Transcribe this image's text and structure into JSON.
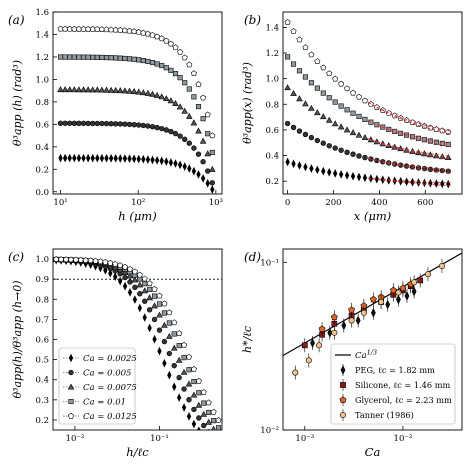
{
  "colors": {
    "ca0025": "#000000",
    "ca005": "#333333",
    "ca0075": "#555555",
    "ca01": "#8f9aa0",
    "ca0125": "#ffffff",
    "peg": "#111111",
    "silicone": "#8b1a1a",
    "glycerol": "#e0662a",
    "tanner": "#f3c488",
    "fit_line": "#000000",
    "dashed_fit": "#e03030"
  },
  "chart_data": [
    {
      "panel_label": "(a)",
      "type": "scatter",
      "xlabel": "h (μm)",
      "ylabel": "θ³app (h) (rad³)",
      "xscale": "log",
      "xlim": [
        8,
        1200
      ],
      "ylim": [
        -0.02,
        1.6
      ],
      "xticks": [
        10,
        100,
        1000
      ],
      "xticklabels": [
        "10¹",
        "10²",
        "10³"
      ],
      "yticks": [
        0.0,
        0.2,
        0.4,
        0.6,
        0.8,
        1.0,
        1.2,
        1.4,
        1.6
      ],
      "yticklabels": [
        "0.0",
        "0.2",
        "0.4",
        "0.6",
        "0.8",
        "1.0",
        "1.2",
        "1.4",
        "1.6"
      ],
      "series": [
        {
          "marker": "diamond",
          "fill": "ca0025",
          "plateau": 0.3,
          "end": 0.02
        },
        {
          "marker": "circle",
          "fill": "ca005",
          "plateau": 0.61,
          "end": 0.08
        },
        {
          "marker": "triangle",
          "fill": "ca0075",
          "plateau": 0.91,
          "end": 0.2
        },
        {
          "marker": "square",
          "fill": "ca01",
          "plateau": 1.2,
          "end": 0.35
        },
        {
          "marker": "pentagon",
          "fill": "ca0125",
          "plateau": 1.45,
          "end": 0.5
        }
      ]
    },
    {
      "panel_label": "(b)",
      "type": "scatter",
      "xlabel": "x (μm)",
      "ylabel": "θ³app(x) (rad³)",
      "xlim": [
        -20,
        760
      ],
      "ylim": [
        0.1,
        1.52
      ],
      "xticks": [
        0,
        200,
        400,
        600
      ],
      "xticklabels": [
        "0",
        "200",
        "400",
        "600"
      ],
      "yticks": [
        0.2,
        0.4,
        0.6,
        0.8,
        1.0,
        1.2,
        1.4
      ],
      "yticklabels": [
        "0.2",
        "0.4",
        "0.6",
        "0.8",
        "1.0",
        "1.2",
        "1.4"
      ],
      "series": [
        {
          "marker": "diamond",
          "fill": "ca0025",
          "start": 0.35,
          "end": 0.15
        },
        {
          "marker": "circle",
          "fill": "ca005",
          "start": 0.65,
          "end": 0.22
        },
        {
          "marker": "triangle",
          "fill": "ca0075",
          "start": 0.93,
          "end": 0.3
        },
        {
          "marker": "square",
          "fill": "ca01",
          "start": 1.17,
          "end": 0.38
        },
        {
          "marker": "pentagon",
          "fill": "ca0125",
          "start": 1.44,
          "end": 0.45
        }
      ]
    },
    {
      "panel_label": "(c)",
      "type": "scatter",
      "xlabel": "h/ℓc",
      "ylabel": "θ³app(h)/θ³app (h→0)",
      "xscale": "log",
      "xlim": [
        0.0055,
        0.55
      ],
      "ylim": [
        0.15,
        1.05
      ],
      "xticks": [
        0.01,
        0.1
      ],
      "xticklabels": [
        "10⁻²",
        "10⁻¹"
      ],
      "yticks": [
        0.2,
        0.3,
        0.4,
        0.5,
        0.6,
        0.7,
        0.8,
        0.9,
        1.0
      ],
      "yticklabels": [
        "0.2",
        "0.3",
        "0.4",
        "0.5",
        "0.6",
        "0.7",
        "0.8",
        "0.9",
        "1.0"
      ],
      "reference_line": 0.9,
      "series": [
        {
          "name": "Ca = 0.0025",
          "marker": "diamond",
          "fill": "ca0025",
          "scale": 0.11
        },
        {
          "name": "Ca = 0.005",
          "marker": "circle",
          "fill": "ca005",
          "scale": 0.14
        },
        {
          "name": "Ca = 0.0075",
          "marker": "triangle",
          "fill": "ca0075",
          "scale": 0.17
        },
        {
          "name": "Ca = 0.01",
          "marker": "square",
          "fill": "ca01",
          "scale": 0.2
        },
        {
          "name": "Ca = 0.0125",
          "marker": "pentagon",
          "fill": "ca0125",
          "scale": 0.23
        }
      ],
      "legend_position": "bottom-left"
    },
    {
      "panel_label": "(d)",
      "type": "scatter",
      "xlabel": "Ca",
      "ylabel": "h*/ℓc",
      "xscale": "log",
      "yscale": "log",
      "xlim": [
        0.0006,
        0.04
      ],
      "ylim": [
        0.01,
        0.12
      ],
      "xticks": [
        0.001,
        0.01
      ],
      "xticklabels": [
        "10⁻³",
        "10⁻²"
      ],
      "yticks": [
        0.01,
        0.1
      ],
      "yticklabels": [
        "10⁻²",
        "10⁻¹"
      ],
      "line": {
        "name": "Ca^1/3",
        "from": [
          0.0006,
          0.0278
        ],
        "to": [
          0.04,
          0.1136
        ]
      },
      "series": [
        {
          "name": "PEG, ℓc = 1.82 mm",
          "marker": "diamond",
          "fill": "peg",
          "x": [
            0.0012,
            0.0018,
            0.0025,
            0.0035,
            0.005,
            0.007,
            0.009,
            0.011,
            0.013
          ],
          "y": [
            0.033,
            0.038,
            0.042,
            0.045,
            0.05,
            0.056,
            0.06,
            0.063,
            0.067
          ]
        },
        {
          "name": "Silicone, ℓc = 1.46 mm",
          "marker": "square",
          "fill": "silicone",
          "x": [
            0.001,
            0.0015,
            0.002,
            0.003,
            0.004,
            0.006,
            0.008,
            0.01,
            0.012,
            0.015
          ],
          "y": [
            0.032,
            0.037,
            0.043,
            0.048,
            0.052,
            0.058,
            0.064,
            0.068,
            0.072,
            0.078
          ]
        },
        {
          "name": "Glycerol, ℓc = 2.23 mm",
          "marker": "pentagon",
          "fill": "glycerol",
          "x": [
            0.0015,
            0.002,
            0.003,
            0.004,
            0.005,
            0.006,
            0.008,
            0.01,
            0.012
          ],
          "y": [
            0.04,
            0.047,
            0.052,
            0.055,
            0.06,
            0.062,
            0.068,
            0.07,
            0.074
          ]
        },
        {
          "name": "Tanner (1986)",
          "marker": "circle",
          "fill": "tanner",
          "x": [
            0.0008,
            0.0011,
            0.0014,
            0.002,
            0.003,
            0.004,
            0.006,
            0.009,
            0.013,
            0.018,
            0.025
          ],
          "y": [
            0.022,
            0.026,
            0.032,
            0.038,
            0.045,
            0.05,
            0.058,
            0.066,
            0.076,
            0.085,
            0.095
          ]
        }
      ],
      "legend_position": "bottom-right"
    }
  ]
}
